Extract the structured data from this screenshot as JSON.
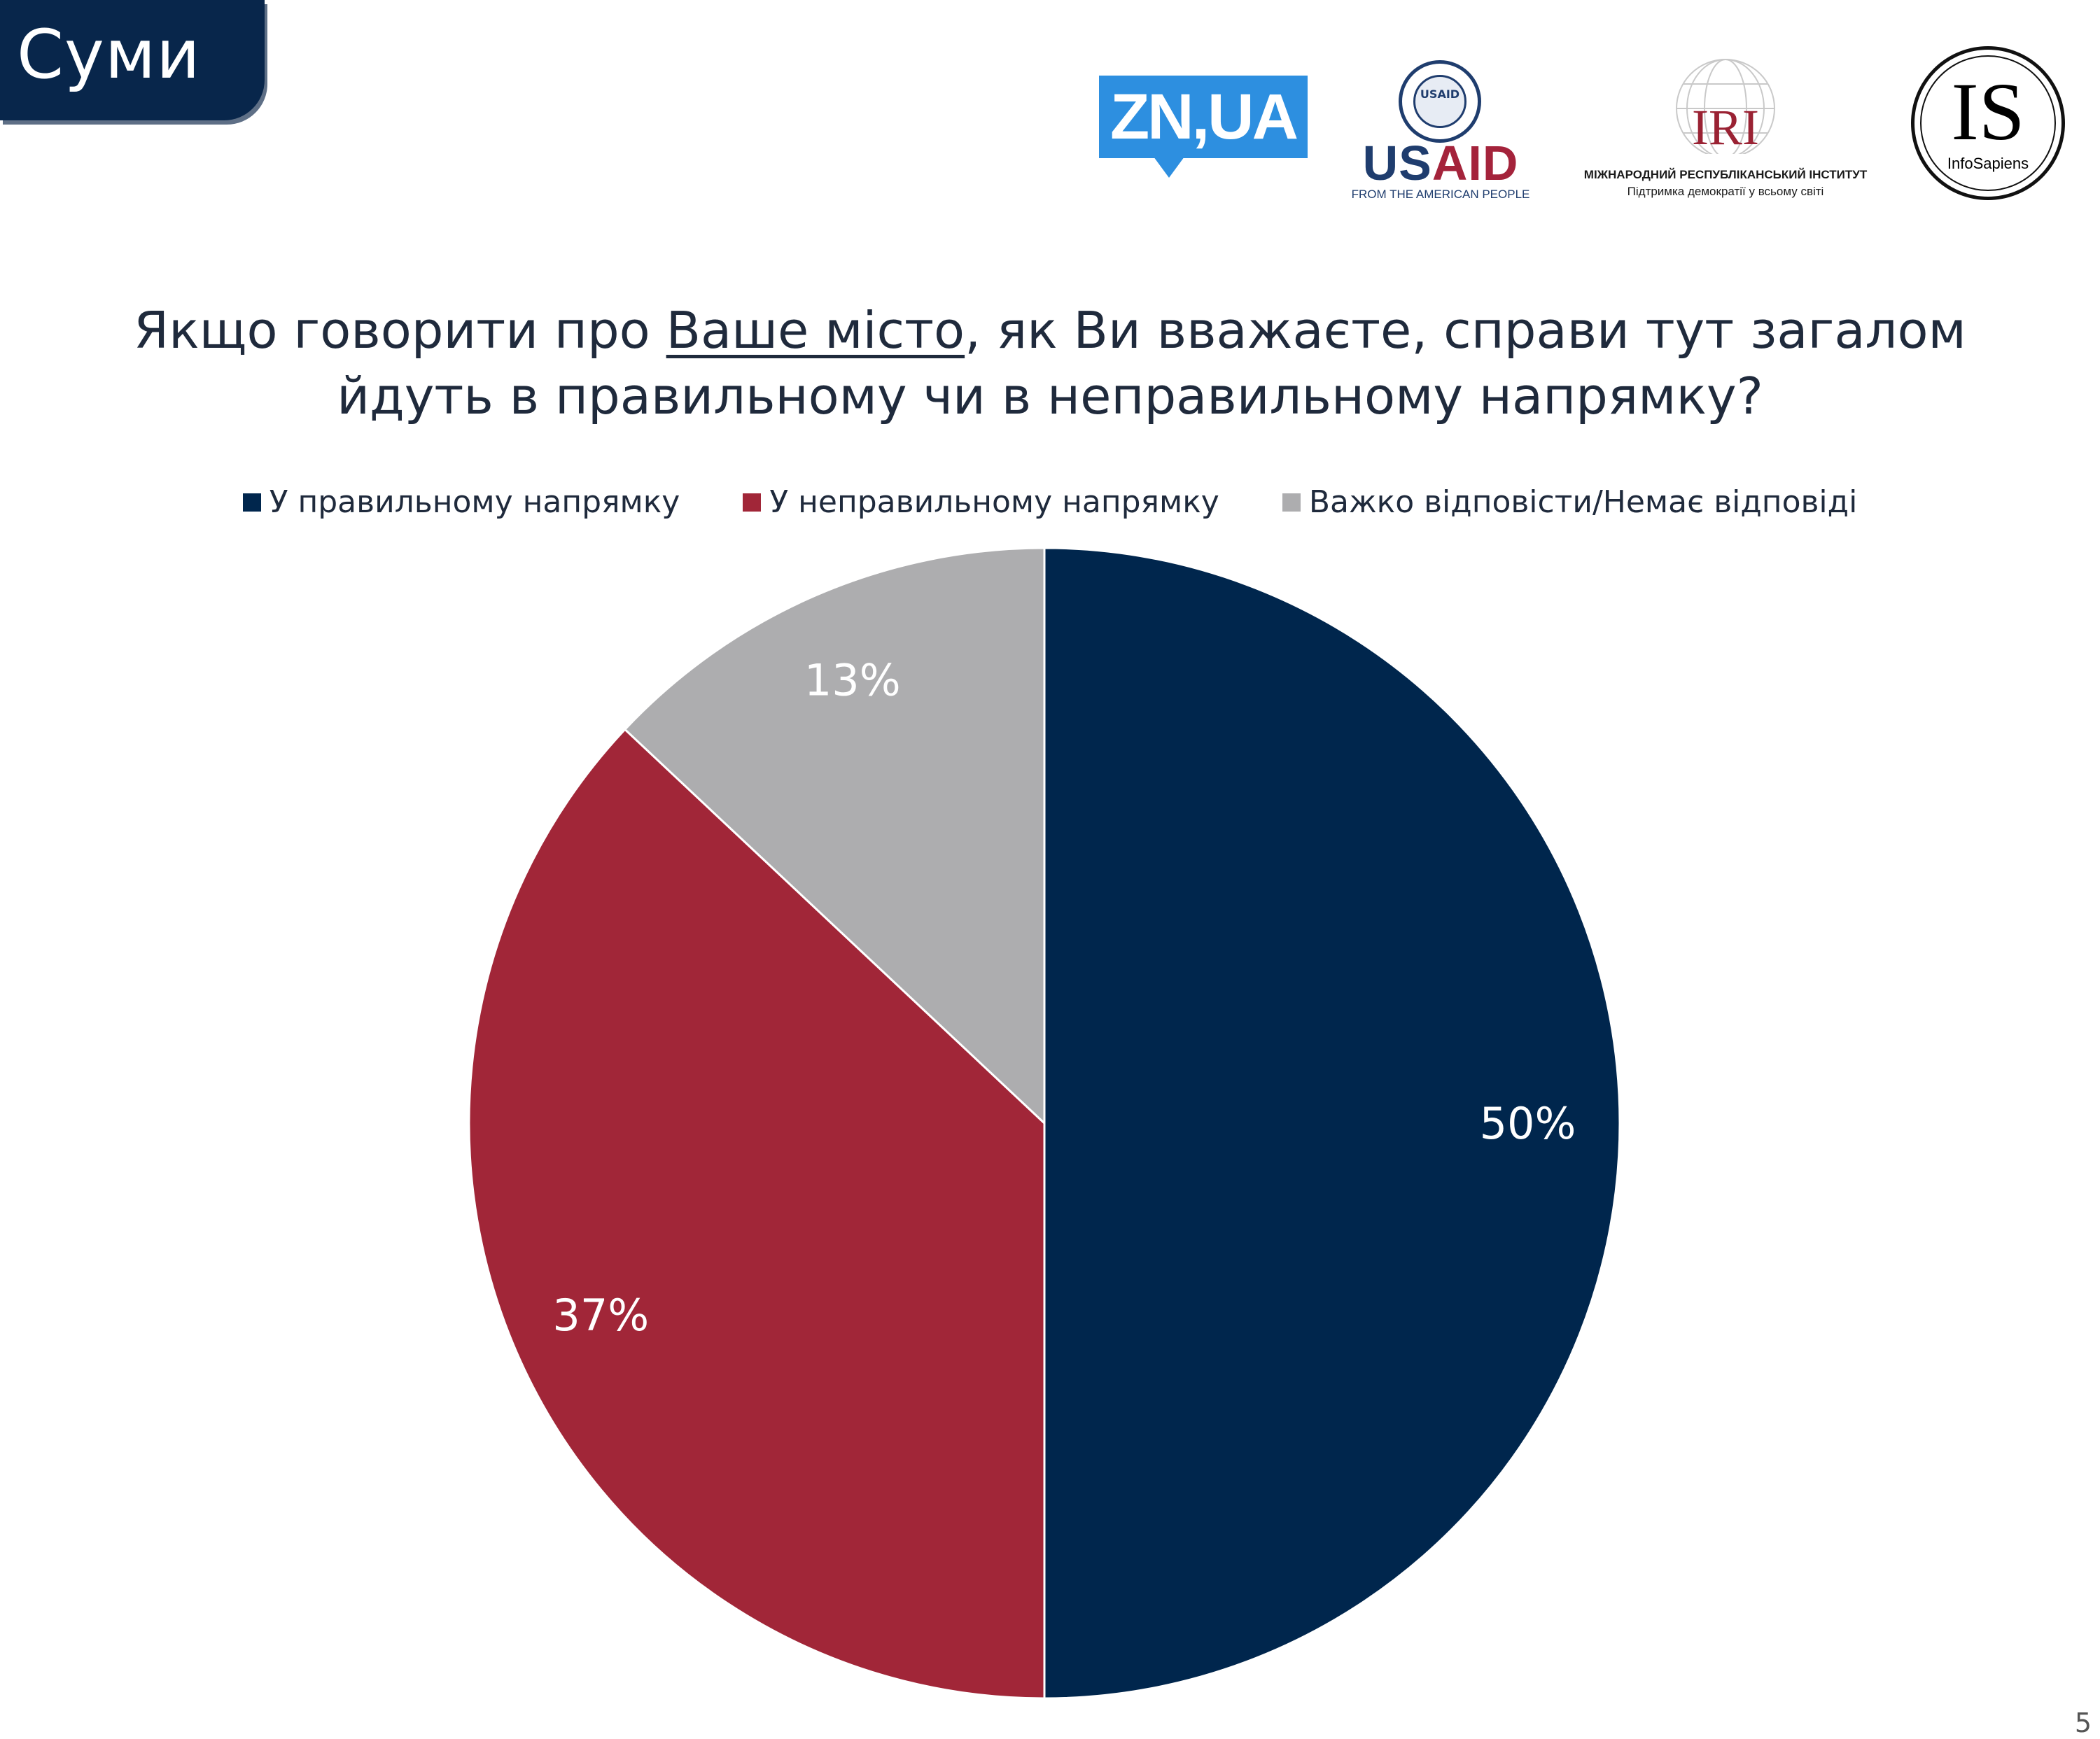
{
  "city": "Суми",
  "logos": {
    "zn": "ZN,UA",
    "usaid_seal": "USAID",
    "usaid_us": "US",
    "usaid_aid": "AID",
    "usaid_sub": "FROM THE AMERICAN PEOPLE",
    "iri": "IRI",
    "iri_name": "МІЖНАРОДНИЙ РЕСПУБЛІКАНСЬКИЙ ІНСТИТУТ",
    "iri_sub": "Підтримка демократії у всьому світі",
    "is_letters": "IS",
    "is_name": "InfoSapiens"
  },
  "question": {
    "line1_pre": "Якщо говорити про ",
    "line1_underlined": "Ваше місто",
    "line1_post": ", як Ви вважаєте, справи тут загалом",
    "line2": "йдуть в правильному чи в неправильному напрямку?"
  },
  "chart_data": {
    "type": "pie",
    "title": "Якщо говорити про Ваше місто, як Ви вважаєте, справи тут загалом йдуть в правильному чи в неправильному напрямку?",
    "legend_position": "top",
    "slices": [
      {
        "name": "У правильному напрямку",
        "value": 50,
        "label": "50%",
        "color": "#00264d"
      },
      {
        "name": "У неправильному напрямку",
        "value": 37,
        "label": "37%",
        "color": "#a12638"
      },
      {
        "name": "Важко відповісти/Немає відповіді",
        "value": 13,
        "label": "13%",
        "color": "#adadaf"
      }
    ]
  },
  "page_number": "5"
}
